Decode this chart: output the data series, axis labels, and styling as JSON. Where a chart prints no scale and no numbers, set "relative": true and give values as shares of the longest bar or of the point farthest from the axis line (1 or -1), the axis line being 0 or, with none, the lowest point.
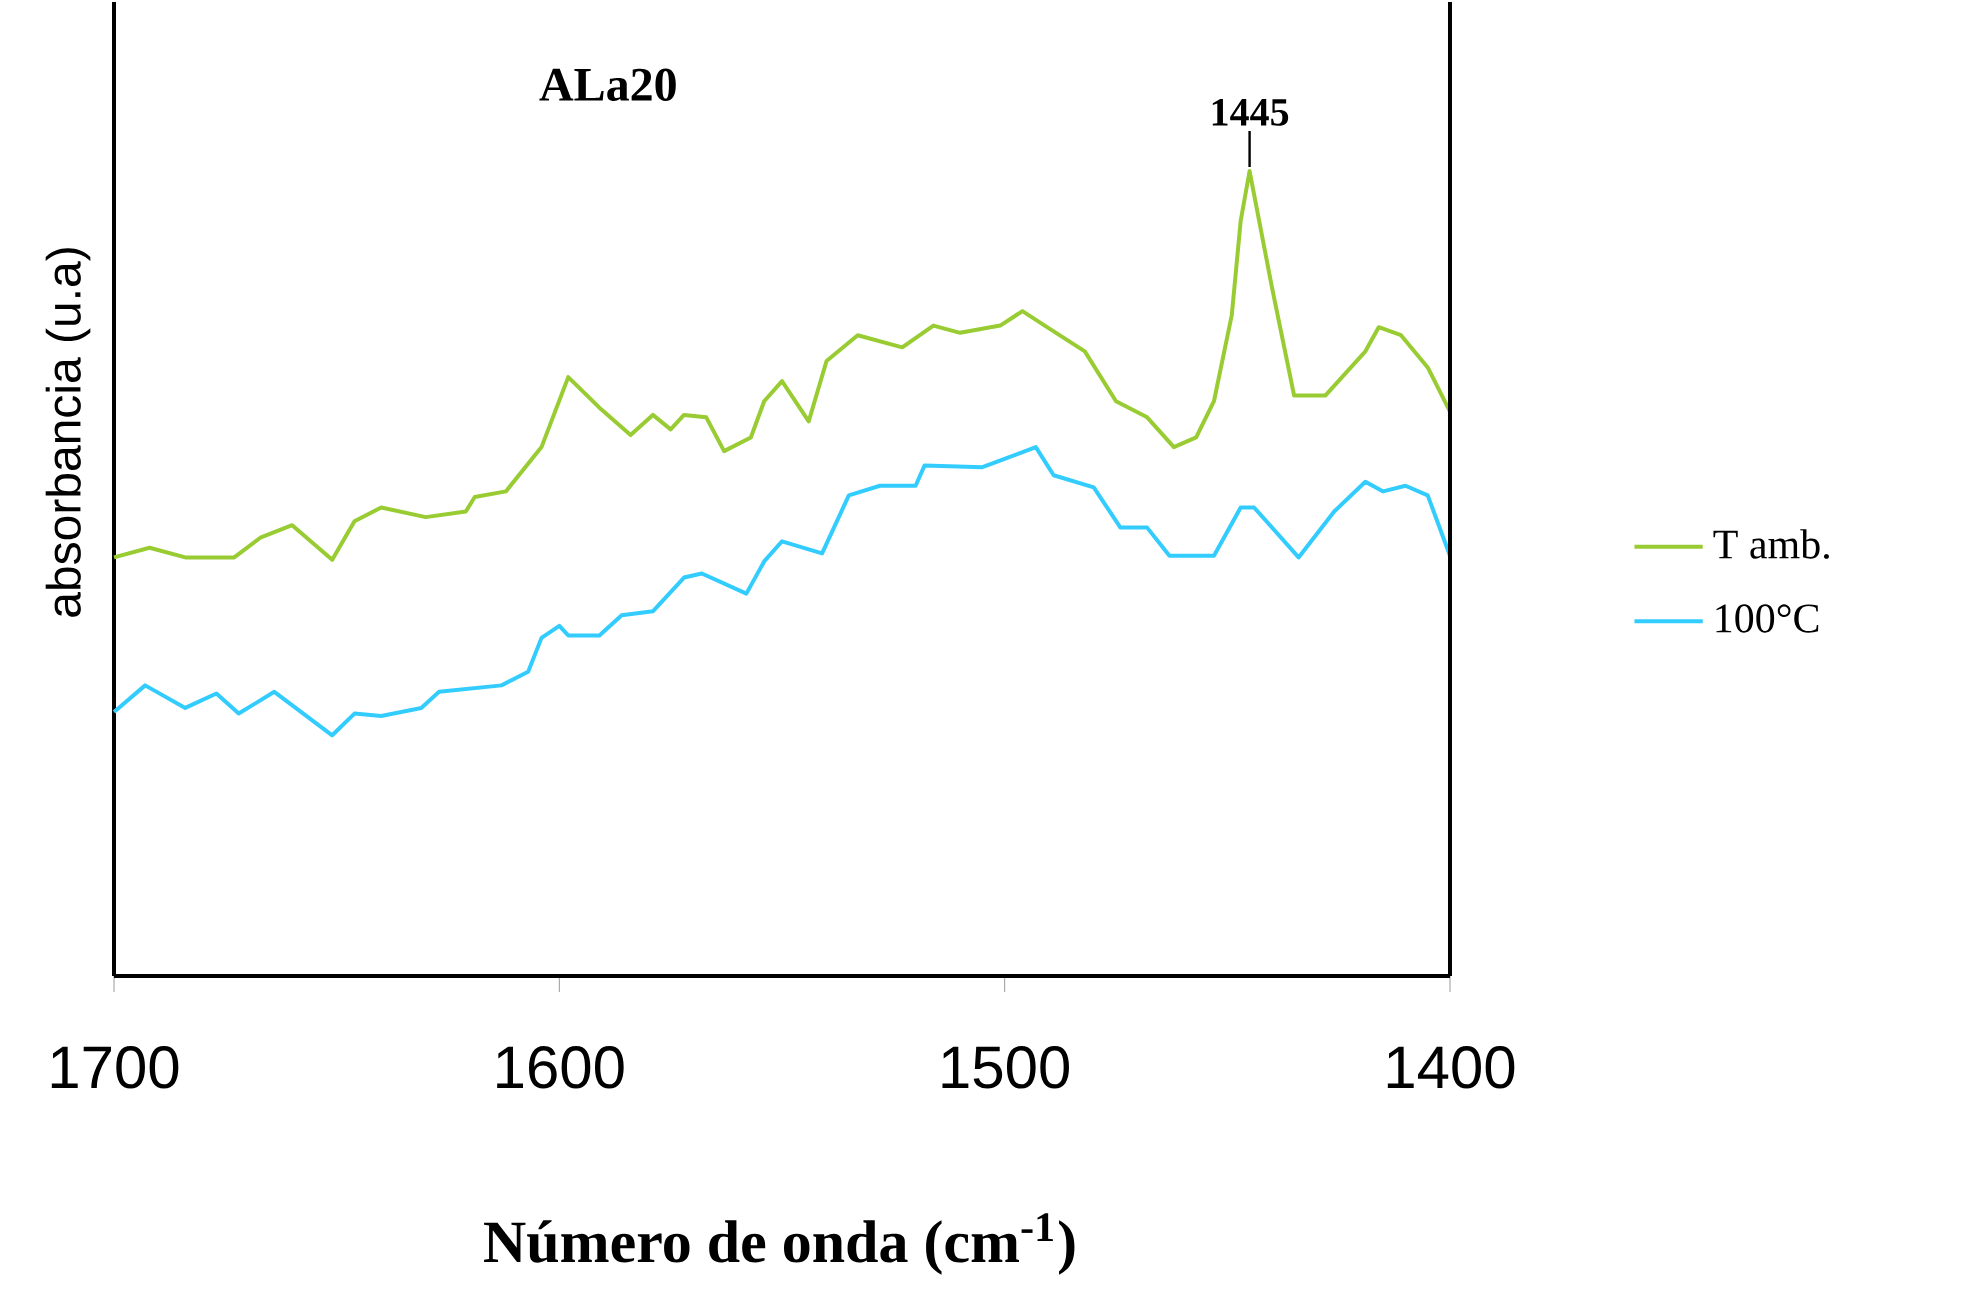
{
  "chart_data": {
    "type": "line",
    "title": "ALa20",
    "xlabel": "Número de onda (cm$^{-1}$)",
    "ylabel": "absorbancia (u.a)",
    "relative": true,
    "marker": "none",
    "legend": "right",
    "xlim": [
      1700,
      1400
    ],
    "xticks": [
      1700,
      1600,
      1500,
      1400
    ],
    "annotations": [
      {
        "text": "1445",
        "x": 1445,
        "y": 1
      }
    ],
    "series": [
      {
        "name": "T amb.",
        "color": "#99cc33",
        "x": [
          1700,
          1692,
          1684,
          1673,
          1667,
          1660,
          1651,
          1646,
          1640,
          1630,
          1621,
          1619,
          1612,
          1604,
          1598,
          1591,
          1584,
          1579,
          1575,
          1572,
          1567,
          1563,
          1557,
          1554,
          1550,
          1544,
          1540,
          1533,
          1523,
          1516,
          1510,
          1501,
          1496,
          1491,
          1482,
          1475,
          1468,
          1462,
          1457,
          1453,
          1449,
          1447,
          1445,
          1440,
          1435,
          1428,
          1419,
          1416,
          1411,
          1405,
          1400
        ],
        "values": [
          0.52,
          0.532,
          0.52,
          0.52,
          0.545,
          0.56,
          0.517,
          0.565,
          0.582,
          0.57,
          0.577,
          0.595,
          0.602,
          0.657,
          0.744,
          0.706,
          0.672,
          0.697,
          0.679,
          0.697,
          0.694,
          0.652,
          0.669,
          0.714,
          0.739,
          0.689,
          0.764,
          0.796,
          0.781,
          0.808,
          0.799,
          0.808,
          0.826,
          0.808,
          0.776,
          0.714,
          0.694,
          0.657,
          0.669,
          0.714,
          0.821,
          0.938,
          1,
          0.856,
          0.721,
          0.721,
          0.776,
          0.806,
          0.796,
          0.756,
          0.701
        ]
      },
      {
        "name": "100°C",
        "color": "#33ccff",
        "x": [
          1700,
          1693,
          1684,
          1677,
          1672,
          1664,
          1651,
          1646,
          1640,
          1631,
          1627,
          1613,
          1607,
          1604,
          1600,
          1598,
          1591,
          1586,
          1579,
          1572,
          1568,
          1558,
          1554,
          1550,
          1541,
          1535,
          1528,
          1520,
          1518,
          1505,
          1493,
          1489,
          1480,
          1474,
          1468,
          1463,
          1453,
          1447,
          1444,
          1434,
          1426,
          1419,
          1415,
          1410,
          1405,
          1400
        ],
        "values": [
          0.328,
          0.361,
          0.333,
          0.351,
          0.326,
          0.353,
          0.299,
          0.326,
          0.323,
          0.333,
          0.353,
          0.361,
          0.378,
          0.42,
          0.435,
          0.423,
          0.423,
          0.448,
          0.453,
          0.495,
          0.5,
          0.475,
          0.515,
          0.54,
          0.525,
          0.597,
          0.609,
          0.609,
          0.634,
          0.632,
          0.657,
          0.622,
          0.607,
          0.557,
          0.557,
          0.522,
          0.522,
          0.582,
          0.582,
          0.52,
          0.577,
          0.614,
          0.602,
          0.609,
          0.597,
          0.522
        ]
      }
    ]
  }
}
